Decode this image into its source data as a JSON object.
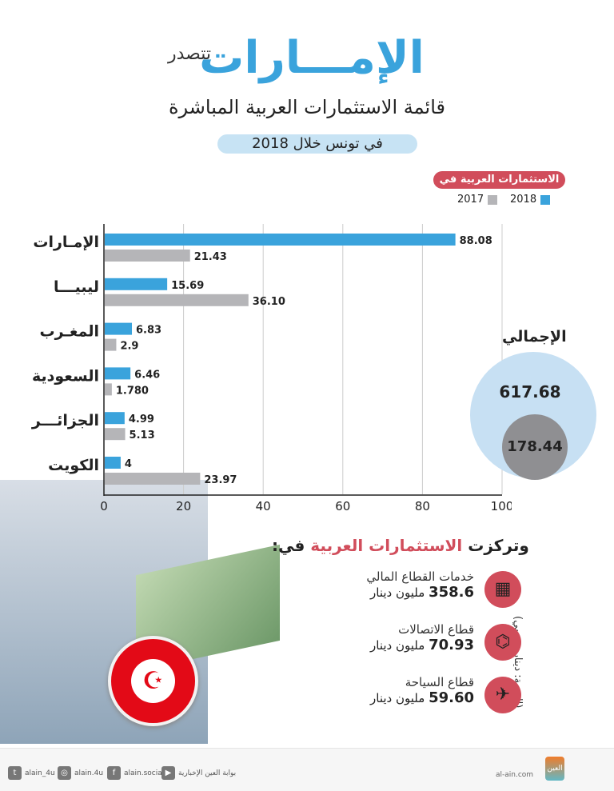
{
  "header": {
    "title_main": "الإمـــارات",
    "title_small": "تتصدر",
    "subtitle": "قائمة الاستثمارات العربية المباشرة",
    "pill": "في تونس خلال 2018"
  },
  "legend": {
    "title": "الاستثمارات العربية في",
    "items": [
      {
        "label": "2018",
        "color": "#3aa3dc"
      },
      {
        "label": "2017",
        "color": "#b5b5b8"
      }
    ]
  },
  "chart_data": {
    "type": "bar",
    "orientation": "horizontal",
    "categories": [
      "الإمـارات",
      "ليبيـــا",
      "المغـرب",
      "السعودية",
      "الجزائـــر",
      "الكويت"
    ],
    "series": [
      {
        "name": "2018",
        "color": "#3aa3dc",
        "values": [
          88.08,
          15.69,
          6.83,
          6.46,
          4.99,
          4
        ],
        "labels": [
          "88.08",
          "15.69",
          "6.83",
          "6.46",
          "4.99",
          "4"
        ]
      },
      {
        "name": "2017",
        "color": "#b5b5b8",
        "values": [
          21.43,
          36.1,
          2.9,
          1.78,
          5.13,
          23.97
        ],
        "labels": [
          "21.43",
          "36.10",
          "2.9",
          "1.780",
          "5.13",
          "23.97"
        ]
      }
    ],
    "xlim": [
      0,
      100
    ],
    "xticks": [
      "0",
      "20",
      "40",
      "60",
      "80",
      "100"
    ],
    "grid": true,
    "legend": "top-right"
  },
  "totals": {
    "label": "الإجمالي",
    "v2018": "617.68",
    "v2017": "178.44"
  },
  "focus": {
    "prefix": "وتركزت",
    "highlight": "الاستثمارات العربية",
    "suffix": "في:"
  },
  "unit_note": "(القيمة: دينار تونسي)",
  "sectors": [
    {
      "name": "خدمات القطاع المالي",
      "value": "358.6",
      "unit": "مليون دينار",
      "icon": "finance-icon"
    },
    {
      "name": "قطاع الاتصالات",
      "value": "70.93",
      "unit": "مليون دينار",
      "icon": "network-icon"
    },
    {
      "name": "قطاع السياحة",
      "value": "59.60",
      "unit": "مليون دينار",
      "icon": "travel-icon"
    }
  ],
  "footer": {
    "site": "al-ain.com",
    "logo": "العين الإخبارية",
    "social": [
      {
        "label": "alain_4u",
        "icon": "twitter-icon",
        "glyph": "t"
      },
      {
        "label": "alain.4u",
        "icon": "instagram-icon",
        "glyph": "◎"
      },
      {
        "label": "alain.social",
        "icon": "facebook-icon",
        "glyph": "f"
      },
      {
        "label": "بوابة العين الإخبارية",
        "icon": "youtube-icon",
        "glyph": "▶"
      }
    ]
  }
}
